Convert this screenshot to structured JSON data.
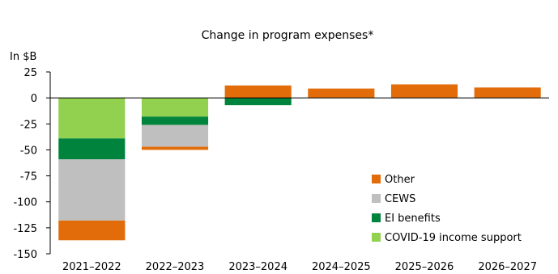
{
  "chart_data": {
    "type": "bar",
    "stacked": true,
    "title": "Change in program expenses*",
    "ylabel": "In $B",
    "xlabel": "",
    "ylim": [
      -150,
      25
    ],
    "yticks": [
      25,
      0,
      -25,
      -50,
      -75,
      -100,
      -125,
      -150
    ],
    "categories": [
      "2021–2022",
      "2022–2023",
      "2023–2024",
      "2024–2025",
      "2025–2026",
      "2026–2027"
    ],
    "series": [
      {
        "name": "COVID-19 income support",
        "color": "#92d050",
        "values": [
          -39,
          -18,
          0,
          0,
          0,
          0
        ]
      },
      {
        "name": "EI benefits",
        "color": "#00843d",
        "values": [
          -20,
          -8,
          -7,
          0,
          0,
          0
        ]
      },
      {
        "name": "CEWS",
        "color": "#bfbfbf",
        "values": [
          -59,
          -21,
          0,
          0,
          0,
          0
        ]
      },
      {
        "name": "Other",
        "color": "#e36c0a",
        "values": [
          -19,
          -3,
          12,
          9,
          13,
          10
        ]
      }
    ],
    "legend": {
      "position": "bottom-right",
      "order": [
        "Other",
        "CEWS",
        "EI benefits",
        "COVID-19 income support"
      ]
    },
    "grid": false
  }
}
